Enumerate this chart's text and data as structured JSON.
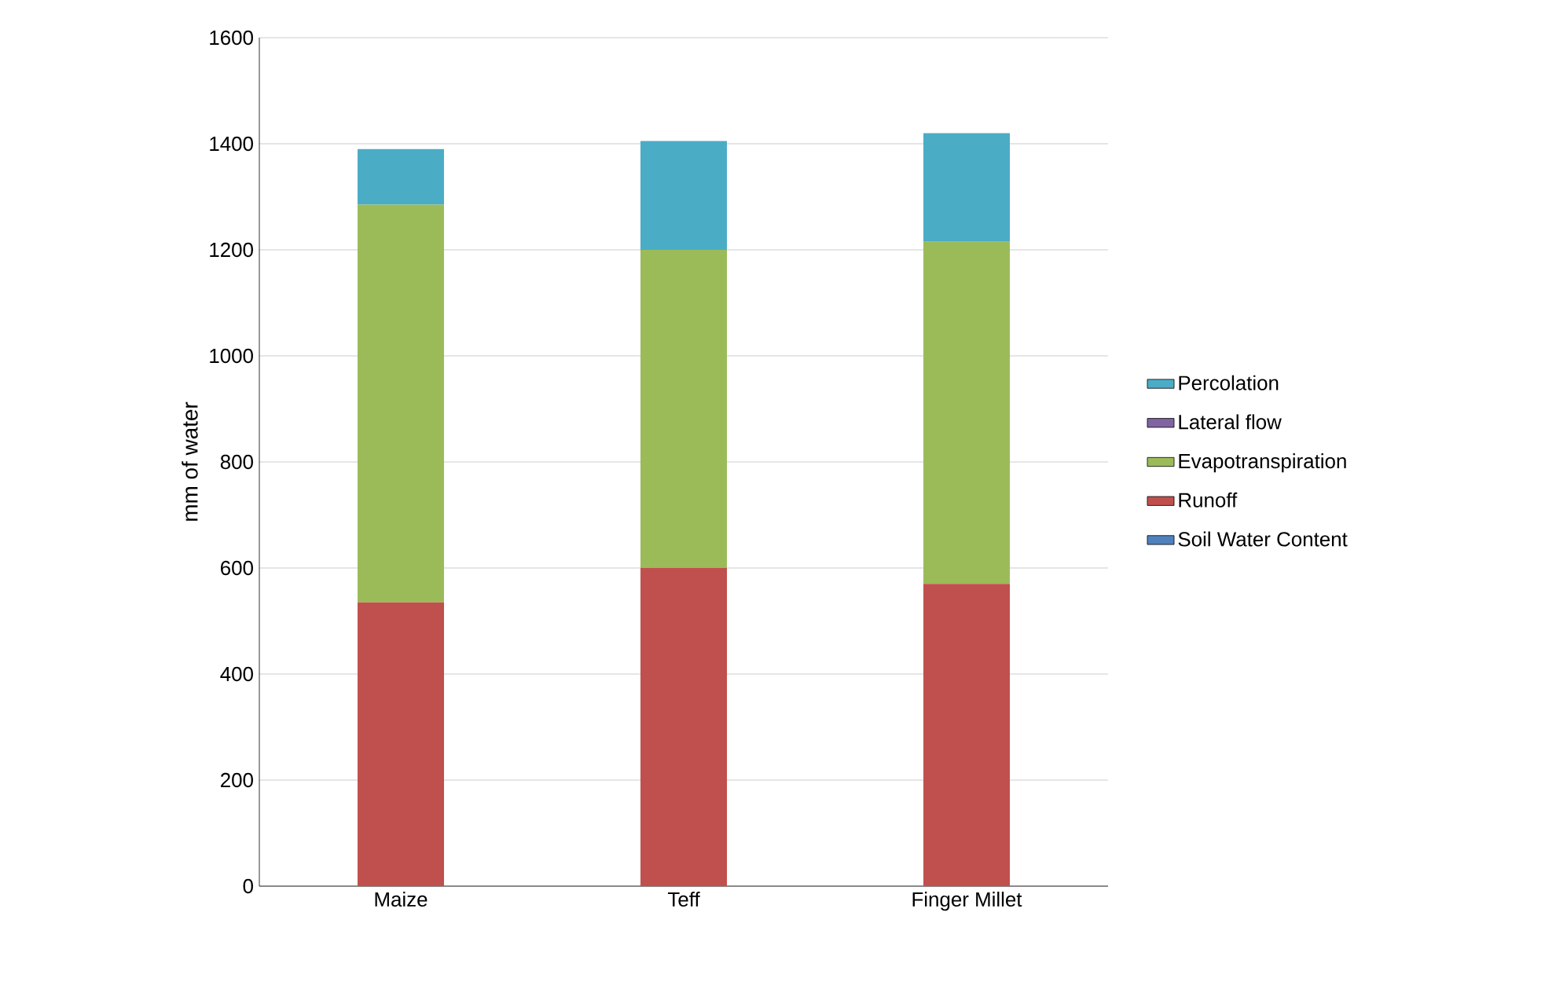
{
  "chart_data": {
    "type": "bar",
    "stacked": true,
    "ylabel": "mm of water",
    "categories": [
      "Maize",
      "Teff",
      "Finger Millet"
    ],
    "series": [
      {
        "name": "Soil Water Content",
        "color": "#4f81bd",
        "values": [
          0,
          0,
          0
        ]
      },
      {
        "name": "Runoff",
        "color": "#c0504d",
        "values": [
          535,
          600,
          570
        ]
      },
      {
        "name": "Evapotranspiration",
        "color": "#9bbb59",
        "values": [
          750,
          600,
          645
        ]
      },
      {
        "name": "Lateral flow",
        "color": "#8064a2",
        "values": [
          0,
          0,
          0
        ]
      },
      {
        "name": "Percolation",
        "color": "#4bacc6",
        "values": [
          105,
          205,
          205
        ]
      }
    ],
    "ylim": [
      0,
      1600
    ],
    "yticks": [
      0,
      200,
      400,
      600,
      800,
      1000,
      1200,
      1400,
      1600
    ],
    "grid": "y",
    "legend": "right"
  }
}
